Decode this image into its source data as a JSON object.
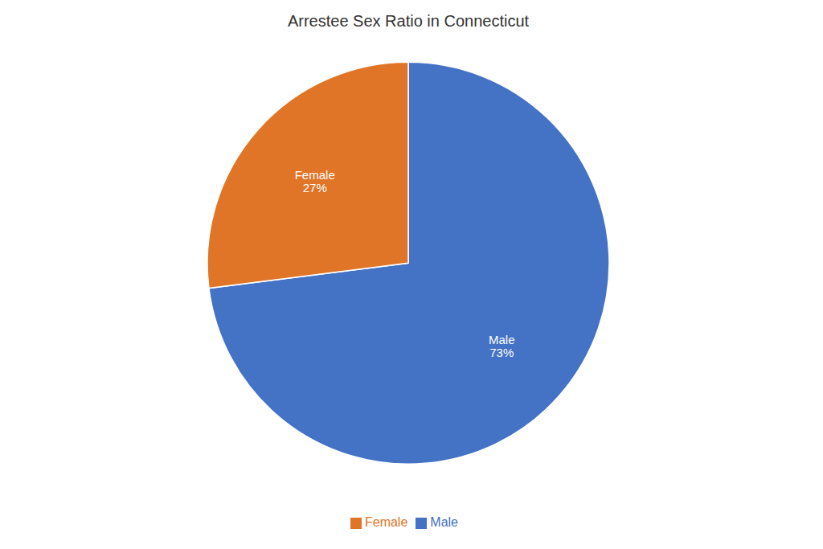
{
  "chart_data": {
    "type": "pie",
    "title": "Arrestee Sex Ratio in Connecticut",
    "categories": [
      "Male",
      "Female"
    ],
    "values": [
      73,
      27
    ],
    "value_labels": [
      "Male\n73%",
      "Female\n27%"
    ],
    "data_labels": true,
    "colors": [
      "#4472C4",
      "#E07528"
    ],
    "legend": "bottom"
  }
}
